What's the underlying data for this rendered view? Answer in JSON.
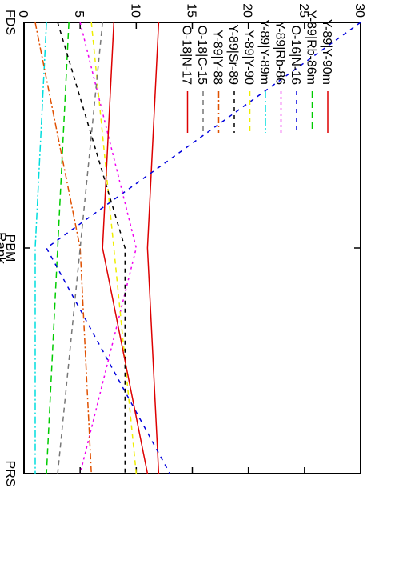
{
  "chart_data": {
    "type": "line",
    "orientation": "rotated-90",
    "categories": [
      "FDS",
      "PBM",
      "PRS"
    ],
    "ylabel": "Rank",
    "ylim": [
      0,
      30
    ],
    "yticks": [
      "0",
      "5",
      "10",
      "15",
      "20",
      "25",
      "30"
    ],
    "grid": false,
    "legend_position": "top-right",
    "series": [
      {
        "name": "Y-89|Y-90m",
        "color": "#dd0000",
        "dash": "",
        "values": [
          12,
          11,
          12
        ]
      },
      {
        "name": "Y-89|Rb-86m",
        "color": "#00cc00",
        "dash": "8 5",
        "values": [
          4,
          3,
          2
        ]
      },
      {
        "name": "O-16|N-16",
        "color": "#0000dd",
        "dash": "5 6",
        "values": [
          30,
          2,
          13
        ]
      },
      {
        "name": "Y-89|Rb-86",
        "color": "#ee00ee",
        "dash": "3 4",
        "values": [
          5,
          10,
          5
        ]
      },
      {
        "name": "Y-89|Y-89m",
        "color": "#00dddd",
        "dash": "9 3 2 3",
        "values": [
          2,
          1,
          1
        ]
      },
      {
        "name": "Y-89|Y-90",
        "color": "#eeee00",
        "dash": "6 5",
        "values": [
          6,
          8,
          10
        ]
      },
      {
        "name": "Y-89|Sr-89",
        "color": "#000000",
        "dash": "5 5",
        "values": [
          3,
          9,
          9
        ]
      },
      {
        "name": "Y-89|Y-88",
        "color": "#e05000",
        "dash": "8 3 2 3",
        "values": [
          1,
          5,
          6
        ]
      },
      {
        "name": "O-18|C-15",
        "color": "#777777",
        "dash": "6 5",
        "values": [
          7,
          5,
          3
        ]
      },
      {
        "name": "O-18|N-17",
        "color": "#dd0000",
        "dash": "",
        "values": [
          8,
          7,
          11
        ]
      }
    ]
  }
}
